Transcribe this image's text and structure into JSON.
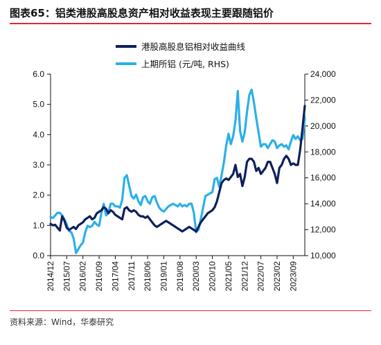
{
  "figure": {
    "label": "图表65：",
    "title": "铝类港股高股息资产相对收益表现主要跟随铝价",
    "source": "资料来源：Wind，华泰研究"
  },
  "colors": {
    "series1": "#0d1f5c",
    "series2": "#2ab0e8",
    "accent": "#e3262d"
  },
  "chart_data": {
    "type": "line",
    "x_tick_labels": [
      "2014/12",
      "2015/07",
      "2016/02",
      "2016/09",
      "2017/04",
      "2017/11",
      "2018/06",
      "2019/01",
      "2019/08",
      "2020/03",
      "2020/10",
      "2021/05",
      "2021/12",
      "2022/07",
      "2023/02",
      "2023/09"
    ],
    "x_range": [
      "2014-12",
      "2024-02"
    ],
    "y_left": {
      "min": 0,
      "max": 6,
      "ticks": [
        "0.0",
        "1.0",
        "2.0",
        "3.0",
        "4.0",
        "5.0",
        "6.0"
      ]
    },
    "y_right": {
      "min": 10000,
      "max": 24000,
      "ticks": [
        "10,000",
        "12,000",
        "14,000",
        "16,000",
        "18,000",
        "20,000",
        "22,000",
        "24,000"
      ]
    },
    "grid": false,
    "legend_position": "top-center",
    "series": [
      {
        "name": "港股高股息铝相对收益曲线",
        "axis": "left",
        "points": [
          [
            "2014-12",
            1.05
          ],
          [
            "2015-01",
            1.0
          ],
          [
            "2015-02",
            1.02
          ],
          [
            "2015-03",
            0.92
          ],
          [
            "2015-04",
            0.83
          ],
          [
            "2015-05",
            1.3
          ],
          [
            "2015-06",
            1.15
          ],
          [
            "2015-07",
            0.92
          ],
          [
            "2015-08",
            0.85
          ],
          [
            "2015-09",
            0.9
          ],
          [
            "2015-10",
            0.95
          ],
          [
            "2015-11",
            0.88
          ],
          [
            "2015-12",
            1.0
          ],
          [
            "2016-01",
            1.05
          ],
          [
            "2016-02",
            1.1
          ],
          [
            "2016-03",
            1.2
          ],
          [
            "2016-04",
            1.25
          ],
          [
            "2016-05",
            1.3
          ],
          [
            "2016-06",
            1.2
          ],
          [
            "2016-07",
            1.25
          ],
          [
            "2016-08",
            1.4
          ],
          [
            "2016-09",
            1.45
          ],
          [
            "2016-10",
            1.5
          ],
          [
            "2016-11",
            1.6
          ],
          [
            "2016-12",
            1.55
          ],
          [
            "2017-01",
            1.4
          ],
          [
            "2017-02",
            1.5
          ],
          [
            "2017-03",
            1.45
          ],
          [
            "2017-04",
            1.35
          ],
          [
            "2017-05",
            1.3
          ],
          [
            "2017-06",
            1.25
          ],
          [
            "2017-07",
            1.2
          ],
          [
            "2017-08",
            1.55
          ],
          [
            "2017-09",
            1.6
          ],
          [
            "2017-10",
            1.5
          ],
          [
            "2017-11",
            1.45
          ],
          [
            "2017-12",
            1.5
          ],
          [
            "2018-01",
            1.45
          ],
          [
            "2018-02",
            1.35
          ],
          [
            "2018-03",
            1.3
          ],
          [
            "2018-04",
            1.3
          ],
          [
            "2018-05",
            1.25
          ],
          [
            "2018-06",
            1.3
          ],
          [
            "2018-07",
            1.2
          ],
          [
            "2018-08",
            1.1
          ],
          [
            "2018-09",
            1.0
          ],
          [
            "2018-10",
            0.95
          ],
          [
            "2018-11",
            1.0
          ],
          [
            "2018-12",
            1.05
          ],
          [
            "2019-01",
            1.1
          ],
          [
            "2019-02",
            1.15
          ],
          [
            "2019-03",
            1.1
          ],
          [
            "2019-04",
            1.05
          ],
          [
            "2019-05",
            1.0
          ],
          [
            "2019-06",
            0.95
          ],
          [
            "2019-07",
            0.9
          ],
          [
            "2019-08",
            0.85
          ],
          [
            "2019-09",
            0.8
          ],
          [
            "2019-10",
            0.85
          ],
          [
            "2019-11",
            0.9
          ],
          [
            "2019-12",
            0.95
          ],
          [
            "2020-01",
            0.9
          ],
          [
            "2020-02",
            0.85
          ],
          [
            "2020-03",
            0.8
          ],
          [
            "2020-04",
            0.95
          ],
          [
            "2020-05",
            1.1
          ],
          [
            "2020-06",
            1.2
          ],
          [
            "2020-07",
            1.3
          ],
          [
            "2020-08",
            1.4
          ],
          [
            "2020-09",
            1.45
          ],
          [
            "2020-10",
            1.5
          ],
          [
            "2020-11",
            1.6
          ],
          [
            "2020-12",
            1.8
          ],
          [
            "2021-01",
            2.1
          ],
          [
            "2021-02",
            2.4
          ],
          [
            "2021-03",
            2.5
          ],
          [
            "2021-04",
            2.55
          ],
          [
            "2021-05",
            2.5
          ],
          [
            "2021-06",
            2.6
          ],
          [
            "2021-07",
            2.7
          ],
          [
            "2021-08",
            3.0
          ],
          [
            "2021-09",
            2.6
          ],
          [
            "2021-10",
            2.7
          ],
          [
            "2021-11",
            2.3
          ],
          [
            "2021-12",
            2.6
          ],
          [
            "2022-01",
            3.1
          ],
          [
            "2022-02",
            3.2
          ],
          [
            "2022-03",
            3.2
          ],
          [
            "2022-04",
            3.1
          ],
          [
            "2022-05",
            2.8
          ],
          [
            "2022-06",
            2.9
          ],
          [
            "2022-07",
            2.7
          ],
          [
            "2022-08",
            2.8
          ],
          [
            "2022-09",
            2.9
          ],
          [
            "2022-10",
            3.1
          ],
          [
            "2022-11",
            3.1
          ],
          [
            "2022-12",
            2.9
          ],
          [
            "2023-01",
            2.7
          ],
          [
            "2023-02",
            2.4
          ],
          [
            "2023-03",
            2.9
          ],
          [
            "2023-04",
            3.0
          ],
          [
            "2023-05",
            3.2
          ],
          [
            "2023-06",
            3.3
          ],
          [
            "2023-07",
            3.2
          ],
          [
            "2023-08",
            3.0
          ],
          [
            "2023-09",
            3.05
          ],
          [
            "2023-10",
            3.0
          ],
          [
            "2023-11",
            3.0
          ],
          [
            "2023-12",
            3.5
          ],
          [
            "2024-01",
            4.2
          ],
          [
            "2024-02",
            4.95
          ]
        ]
      },
      {
        "name": "上期所铝 (元/吨, RHS)",
        "axis": "right",
        "points": [
          [
            "2014-12",
            13000
          ],
          [
            "2015-01",
            12900
          ],
          [
            "2015-02",
            13100
          ],
          [
            "2015-03",
            13300
          ],
          [
            "2015-04",
            13300
          ],
          [
            "2015-05",
            13100
          ],
          [
            "2015-06",
            12800
          ],
          [
            "2015-07",
            12400
          ],
          [
            "2015-08",
            11900
          ],
          [
            "2015-09",
            11800
          ],
          [
            "2015-10",
            11300
          ],
          [
            "2015-11",
            10200
          ],
          [
            "2015-12",
            10500
          ],
          [
            "2016-01",
            10800
          ],
          [
            "2016-02",
            11000
          ],
          [
            "2016-03",
            11800
          ],
          [
            "2016-04",
            12300
          ],
          [
            "2016-05",
            12200
          ],
          [
            "2016-06",
            12300
          ],
          [
            "2016-07",
            12600
          ],
          [
            "2016-08",
            12400
          ],
          [
            "2016-09",
            12300
          ],
          [
            "2016-10",
            13300
          ],
          [
            "2016-11",
            14000
          ],
          [
            "2016-12",
            13100
          ],
          [
            "2017-01",
            13300
          ],
          [
            "2017-02",
            14000
          ],
          [
            "2017-03",
            14000
          ],
          [
            "2017-04",
            13800
          ],
          [
            "2017-05",
            13800
          ],
          [
            "2017-06",
            13700
          ],
          [
            "2017-07",
            14300
          ],
          [
            "2017-08",
            16000
          ],
          [
            "2017-09",
            16200
          ],
          [
            "2017-10",
            15400
          ],
          [
            "2017-11",
            14600
          ],
          [
            "2017-12",
            14400
          ],
          [
            "2018-01",
            14700
          ],
          [
            "2018-02",
            14200
          ],
          [
            "2018-03",
            13900
          ],
          [
            "2018-04",
            14500
          ],
          [
            "2018-05",
            14600
          ],
          [
            "2018-06",
            14200
          ],
          [
            "2018-07",
            14000
          ],
          [
            "2018-08",
            14500
          ],
          [
            "2018-09",
            14600
          ],
          [
            "2018-10",
            14100
          ],
          [
            "2018-11",
            13700
          ],
          [
            "2018-12",
            13500
          ],
          [
            "2019-01",
            13400
          ],
          [
            "2019-02",
            13600
          ],
          [
            "2019-03",
            13800
          ],
          [
            "2019-04",
            13900
          ],
          [
            "2019-05",
            14000
          ],
          [
            "2019-06",
            13900
          ],
          [
            "2019-07",
            13800
          ],
          [
            "2019-08",
            14000
          ],
          [
            "2019-09",
            13800
          ],
          [
            "2019-10",
            13900
          ],
          [
            "2019-11",
            13800
          ],
          [
            "2019-12",
            14000
          ],
          [
            "2020-01",
            14000
          ],
          [
            "2020-02",
            13300
          ],
          [
            "2020-03",
            11800
          ],
          [
            "2020-04",
            12000
          ],
          [
            "2020-05",
            12800
          ],
          [
            "2020-06",
            13700
          ],
          [
            "2020-07",
            14600
          ],
          [
            "2020-08",
            14700
          ],
          [
            "2020-09",
            14800
          ],
          [
            "2020-10",
            14900
          ],
          [
            "2020-11",
            15900
          ],
          [
            "2020-12",
            16000
          ],
          [
            "2021-01",
            15300
          ],
          [
            "2021-02",
            16200
          ],
          [
            "2021-03",
            17200
          ],
          [
            "2021-04",
            18500
          ],
          [
            "2021-05",
            19400
          ],
          [
            "2021-06",
            18600
          ],
          [
            "2021-07",
            19200
          ],
          [
            "2021-08",
            20400
          ],
          [
            "2021-09",
            22700
          ],
          [
            "2021-10",
            19600
          ],
          [
            "2021-11",
            18800
          ],
          [
            "2021-12",
            19500
          ],
          [
            "2022-01",
            21100
          ],
          [
            "2022-02",
            22400
          ],
          [
            "2022-03",
            22800
          ],
          [
            "2022-04",
            21800
          ],
          [
            "2022-05",
            20600
          ],
          [
            "2022-06",
            19500
          ],
          [
            "2022-07",
            18400
          ],
          [
            "2022-08",
            18600
          ],
          [
            "2022-09",
            18600
          ],
          [
            "2022-10",
            18300
          ],
          [
            "2022-11",
            18600
          ],
          [
            "2022-12",
            18900
          ],
          [
            "2023-01",
            18800
          ],
          [
            "2023-02",
            18300
          ],
          [
            "2023-03",
            18500
          ],
          [
            "2023-04",
            18600
          ],
          [
            "2023-05",
            18400
          ],
          [
            "2023-06",
            18500
          ],
          [
            "2023-07",
            18200
          ],
          [
            "2023-08",
            18800
          ],
          [
            "2023-09",
            19300
          ],
          [
            "2023-10",
            19000
          ],
          [
            "2023-11",
            19200
          ],
          [
            "2023-12",
            18900
          ],
          [
            "2024-01",
            19000
          ],
          [
            "2024-02",
            20600
          ]
        ]
      }
    ]
  }
}
